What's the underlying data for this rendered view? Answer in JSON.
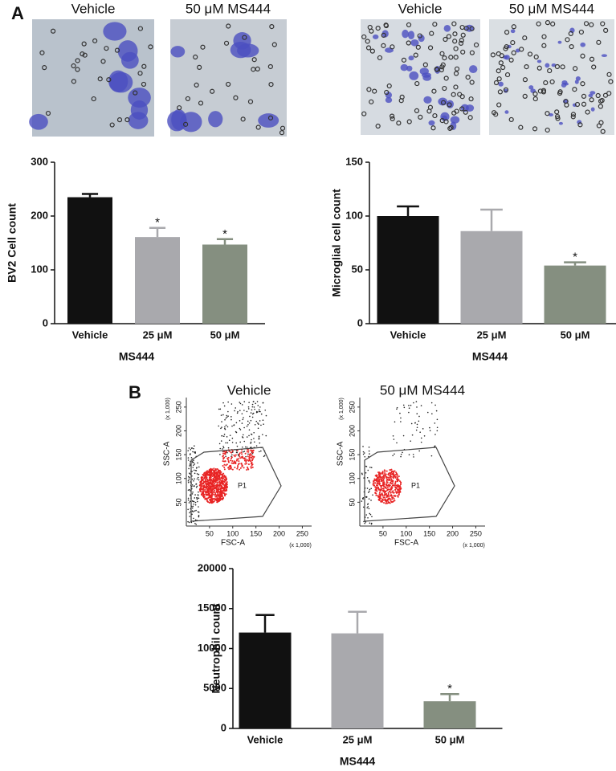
{
  "micrographs": {
    "label": "A",
    "captions": [
      "Vehicle",
      "50 μM MS444",
      "Vehicle",
      "50 μM MS444"
    ]
  },
  "flow_cytometry": {
    "label": "B",
    "plots": [
      {
        "title": "Vehicle"
      },
      {
        "title": "50 μM MS444"
      }
    ],
    "xlabel": "FSC-A",
    "ylabel": "SSC-A",
    "gate": "P1",
    "scale_label": "(x 1,000)",
    "xlim": [
      0,
      270
    ],
    "ylim": [
      0,
      270
    ],
    "xticks": [
      50,
      100,
      150,
      200,
      250
    ],
    "yticks": [
      50,
      100,
      150,
      200,
      250
    ]
  },
  "chart_data": [
    {
      "type": "bar",
      "ylabel": "BV2 Cell count",
      "xlabel": "MS444",
      "categories": [
        "Vehicle",
        "25 μM",
        "50 μM"
      ],
      "values": [
        235,
        161,
        147
      ],
      "errors": [
        6,
        17,
        10
      ],
      "annotations": [
        null,
        "*",
        "*"
      ],
      "colors": [
        "#111111",
        "#a9a9ad",
        "#858f80"
      ],
      "ylim": [
        0,
        300
      ],
      "yticks": [
        0,
        100,
        200,
        300
      ]
    },
    {
      "type": "bar",
      "ylabel": "Microglial cell count",
      "xlabel": "MS444",
      "categories": [
        "Vehicle",
        "25 μM",
        "50 μM"
      ],
      "values": [
        100,
        86,
        54
      ],
      "errors": [
        9,
        20,
        3
      ],
      "annotations": [
        null,
        null,
        "*"
      ],
      "colors": [
        "#111111",
        "#a9a9ad",
        "#858f80"
      ],
      "ylim": [
        0,
        150
      ],
      "yticks": [
        0,
        50,
        100,
        150
      ]
    },
    {
      "type": "bar",
      "ylabel": "Neutrophil count",
      "xlabel": "MS444",
      "categories": [
        "Vehicle",
        "25 μM",
        "50 μM"
      ],
      "values": [
        12000,
        11900,
        3400
      ],
      "errors": [
        2200,
        2700,
        900
      ],
      "annotations": [
        null,
        null,
        "*"
      ],
      "colors": [
        "#111111",
        "#a9a9ad",
        "#858f80"
      ],
      "ylim": [
        0,
        20000
      ],
      "yticks": [
        0,
        5000,
        10000,
        15000,
        20000
      ]
    }
  ]
}
